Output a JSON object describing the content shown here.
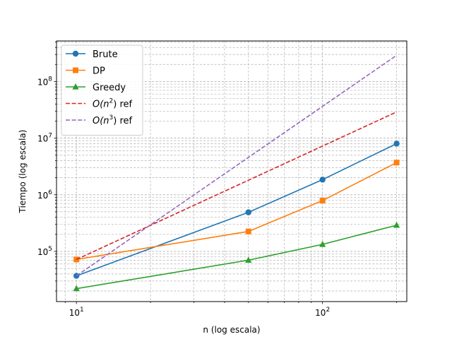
{
  "chart_data": {
    "type": "line",
    "xlabel": "n (log escala)",
    "ylabel": "Tiempo (log escala)",
    "xscale": "log",
    "yscale": "log",
    "xlim": [
      8.3,
      220
    ],
    "ylim": [
      13000,
      520000000
    ],
    "grid": true,
    "legend_position": "top-left",
    "x_ticks": [
      {
        "value": 10,
        "base": "10",
        "exp": "1"
      },
      {
        "value": 100,
        "base": "10",
        "exp": "2"
      }
    ],
    "y_ticks": [
      {
        "value": 100000,
        "base": "10",
        "exp": "5"
      },
      {
        "value": 1000000,
        "base": "10",
        "exp": "6"
      },
      {
        "value": 10000000,
        "base": "10",
        "exp": "7"
      },
      {
        "value": 100000000,
        "base": "10",
        "exp": "8"
      }
    ],
    "series": [
      {
        "name": "Brute",
        "label_main": "Brute",
        "label_exp": "",
        "label_tail": "",
        "color": "#1f77b4",
        "marker": "circle",
        "dashed": false,
        "x": [
          10,
          50,
          100,
          200
        ],
        "y": [
          37000,
          490000,
          1850000,
          8000000
        ]
      },
      {
        "name": "DP",
        "label_main": "DP",
        "label_exp": "",
        "label_tail": "",
        "color": "#ff7f0e",
        "marker": "square",
        "dashed": false,
        "x": [
          10,
          50,
          100,
          200
        ],
        "y": [
          72000,
          225000,
          790000,
          3700000
        ]
      },
      {
        "name": "Greedy",
        "label_main": "Greedy",
        "label_exp": "",
        "label_tail": "",
        "color": "#2ca02c",
        "marker": "triangle",
        "dashed": false,
        "x": [
          10,
          50,
          100,
          200
        ],
        "y": [
          22000,
          70000,
          133000,
          290000
        ]
      },
      {
        "name": "O(n2) ref",
        "label_main": "O(n",
        "label_exp": "2",
        "label_tail": ") ref",
        "color": "#d62728",
        "marker": "none",
        "dashed": true,
        "x": [
          10,
          200
        ],
        "y": [
          72000,
          29000000
        ]
      },
      {
        "name": "O(n3) ref",
        "label_main": "O(n",
        "label_exp": "3",
        "label_tail": ") ref",
        "color": "#9467bd",
        "marker": "none",
        "dashed": true,
        "x": [
          10,
          200
        ],
        "y": [
          37000,
          290000000
        ]
      }
    ]
  }
}
